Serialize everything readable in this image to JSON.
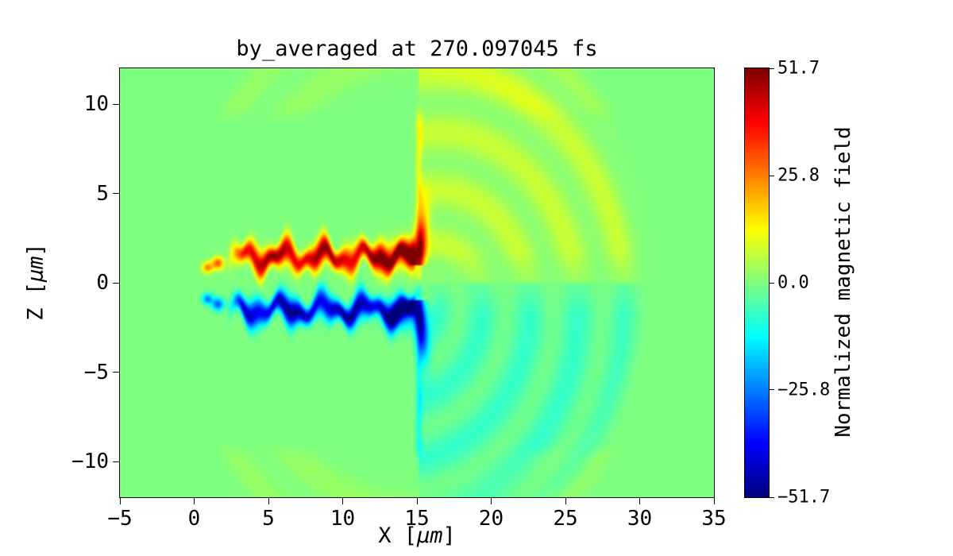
{
  "figure": {
    "background": "#ffffff",
    "text_color": "#000000"
  },
  "chart_data": {
    "type": "heatmap",
    "title": "by_averaged at 270.097045 fs",
    "xlabel": "X [μm]",
    "ylabel": "Z [μm]",
    "xlabel_parts": {
      "prefix": "X [",
      "mu": "μm",
      "suffix": "]"
    },
    "ylabel_parts": {
      "prefix": "Z [",
      "mu": "μm",
      "suffix": "]"
    },
    "xlim": [
      -5,
      35
    ],
    "ylim": [
      -12,
      12
    ],
    "xticks": [
      -5,
      0,
      5,
      10,
      15,
      20,
      25,
      30,
      35
    ],
    "xtick_labels": [
      "−5",
      "0",
      "5",
      "10",
      "15",
      "20",
      "25",
      "30",
      "35"
    ],
    "yticks": [
      10,
      5,
      0,
      -5,
      -10
    ],
    "ytick_labels": [
      "10",
      "5",
      "0",
      "−5",
      "−10"
    ],
    "grid": false,
    "colormap": "jet",
    "colorbar": {
      "label": "Normalized magnetic field",
      "vmin": -51.7,
      "vmax": 51.7,
      "ticks": [
        51.7,
        25.8,
        0.0,
        -25.8,
        -51.7
      ],
      "tick_labels": [
        "51.7",
        "25.8",
        "0.0",
        "−25.8",
        "−51.7"
      ]
    },
    "features": {
      "bands": [
        {
          "x0": 2.0,
          "x1": 15.05,
          "zc": 1.45,
          "w": 0.62,
          "amp": 51.7,
          "wig1": 0.36,
          "f1": 2.3,
          "p1": 0.3,
          "wig2": 0.2,
          "f2": 5.0,
          "p2": 1.4,
          "wamp": 0.28,
          "wf": 3.0,
          "am": 0.22,
          "af": 1.8
        },
        {
          "x0": 2.0,
          "x1": 15.05,
          "zc": -1.5,
          "w": 0.62,
          "amp": -51.7,
          "wig1": 0.36,
          "f1": 2.1,
          "p1": 2.1,
          "wig2": 0.2,
          "f2": 4.6,
          "p2": 0.5,
          "wamp": 0.28,
          "wf": 2.7,
          "am": 0.22,
          "af": 1.6
        }
      ],
      "blobs": [
        {
          "x": 13.9,
          "z": 1.6,
          "sx": 1.1,
          "sz": 0.8,
          "amp": 25
        },
        {
          "x": 13.9,
          "z": -1.8,
          "sx": 1.1,
          "sz": 0.8,
          "amp": -25
        },
        {
          "x": 0.9,
          "z": 0.85,
          "sx": 0.35,
          "sz": 0.3,
          "amp": 26
        },
        {
          "x": 0.9,
          "z": -0.9,
          "sx": 0.35,
          "sz": 0.3,
          "amp": -26
        },
        {
          "x": 1.6,
          "z": 1.1,
          "sx": 0.4,
          "sz": 0.35,
          "amp": 30
        },
        {
          "x": 1.6,
          "z": -1.2,
          "sx": 0.4,
          "sz": 0.35,
          "amp": -30
        }
      ],
      "tails": [
        {
          "x": 15.15,
          "sx": 0.42,
          "zc": 1.9,
          "sz": 2.1,
          "amp": 38,
          "curve": 0.12,
          "zmin": 1.0,
          "zmax": 6.5
        },
        {
          "x": 15.15,
          "sx": 0.42,
          "zc": -2.0,
          "sz": 2.1,
          "amp": -38,
          "curve": 0.12,
          "zmin": -6.5,
          "zmax": -1.0
        }
      ],
      "sheet": {
        "x": 15.12,
        "sx": 0.22,
        "amp": 9.5,
        "zmax": 10.2,
        "fade": 1.2
      },
      "fan": {
        "cx": 15.0,
        "cz": 0.0,
        "r": 16.3,
        "amp": 7.2,
        "ripple": 0.42,
        "rf": 1.9,
        "af": 3.0,
        "inner_fade": 2.0,
        "outer_fade": 2.6
      },
      "outer_arcs": {
        "cx": 15.0,
        "r0": 10.5,
        "r1": 17.0,
        "zmin": 8.8,
        "amp": 2.6,
        "rf": 2.1
      }
    }
  }
}
